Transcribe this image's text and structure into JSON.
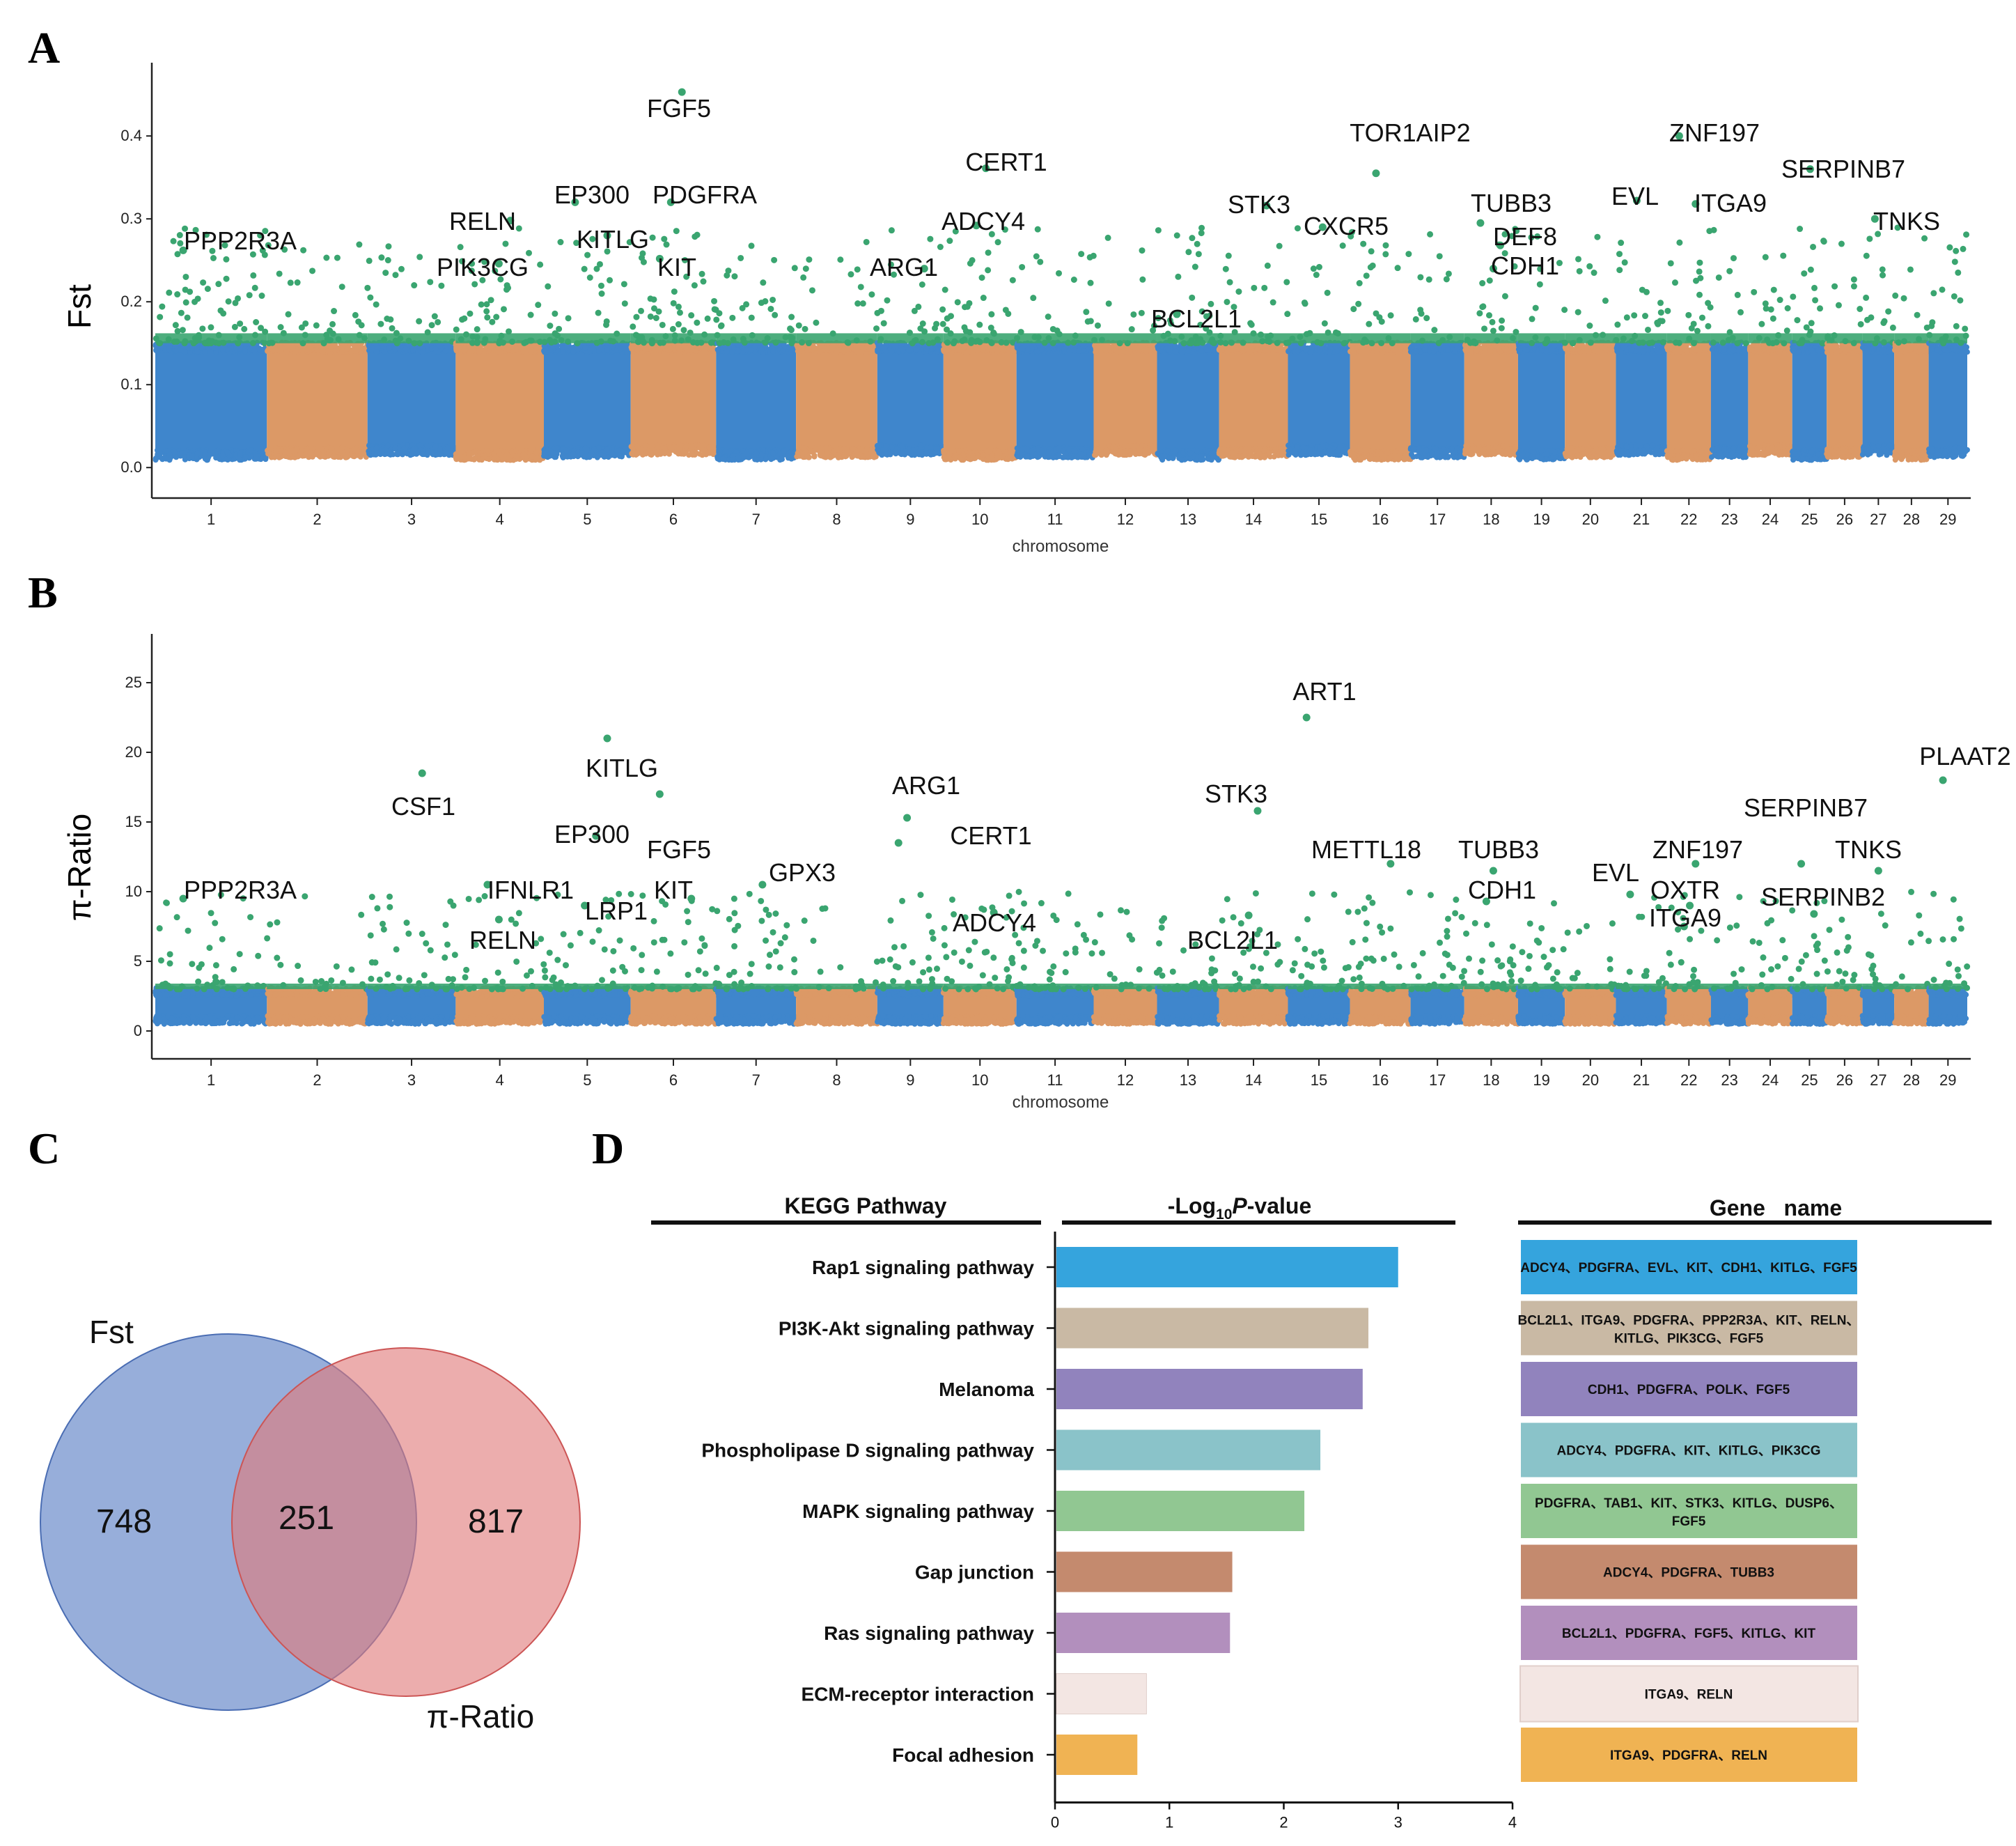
{
  "panel_labels": [
    "A",
    "B",
    "C",
    "D"
  ],
  "colors": {
    "blue": "#3f86cc",
    "orange": "#dc9966",
    "green": "#3aa570",
    "venn_blue": "#6f8fcc",
    "venn_red": "#e07a7a"
  },
  "chart_data": [
    {
      "id": "A",
      "type": "scatter",
      "title": "",
      "xlabel": "chromosome",
      "ylabel": "Fst",
      "ylim": [
        -0.02,
        0.48
      ],
      "yticks": [
        "0.0",
        "0.1",
        "0.2",
        "0.3",
        "0.4"
      ],
      "chromosomes": [
        "1",
        "2",
        "3",
        "4",
        "5",
        "6",
        "7",
        "8",
        "9",
        "10",
        "11",
        "12",
        "13",
        "14",
        "15",
        "16",
        "17",
        "18",
        "19",
        "20",
        "21",
        "22",
        "23",
        "24",
        "25",
        "26",
        "27",
        "28",
        "29"
      ],
      "background_max": 0.15,
      "threshold": 0.15,
      "annotations": [
        {
          "gene": "PPP2R3A",
          "chrom": 1,
          "value": 0.262
        },
        {
          "gene": "RELN",
          "chrom": 4,
          "value": 0.298
        },
        {
          "gene": "PIK3CG",
          "chrom": 4,
          "value": 0.246
        },
        {
          "gene": "EP300",
          "chrom": 5,
          "value": 0.32
        },
        {
          "gene": "KITLG",
          "chrom": 5,
          "value": 0.28
        },
        {
          "gene": "FGF5",
          "chrom": 6,
          "value": 0.453
        },
        {
          "gene": "PDGFRA",
          "chrom": 6,
          "value": 0.32
        },
        {
          "gene": "KIT",
          "chrom": 6,
          "value": 0.252
        },
        {
          "gene": "ARG1",
          "chrom": 9,
          "value": 0.24
        },
        {
          "gene": "CERT1",
          "chrom": 10,
          "value": 0.361
        },
        {
          "gene": "ADCY4",
          "chrom": 10,
          "value": 0.292
        },
        {
          "gene": "BCL2L1",
          "chrom": 13,
          "value": 0.185
        },
        {
          "gene": "STK3",
          "chrom": 14,
          "value": 0.316
        },
        {
          "gene": "CXCR5",
          "chrom": 15,
          "value": 0.29
        },
        {
          "gene": "TOR1AIP2",
          "chrom": 16,
          "value": 0.355
        },
        {
          "gene": "TUBB3",
          "chrom": 18,
          "value": 0.295
        },
        {
          "gene": "DEF8",
          "chrom": 18,
          "value": 0.268
        },
        {
          "gene": "CDH1",
          "chrom": 18,
          "value": 0.24
        },
        {
          "gene": "EVL",
          "chrom": 21,
          "value": 0.322
        },
        {
          "gene": "ZNF197",
          "chrom": 22,
          "value": 0.4
        },
        {
          "gene": "ITGA9",
          "chrom": 22,
          "value": 0.318
        },
        {
          "gene": "SERPINB7",
          "chrom": 25,
          "value": 0.36
        },
        {
          "gene": "TNKS",
          "chrom": 27,
          "value": 0.3
        }
      ]
    },
    {
      "id": "B",
      "type": "scatter",
      "title": "",
      "xlabel": "chromosome",
      "ylabel": "π-Ratio",
      "ylim": [
        -1,
        28
      ],
      "yticks": [
        "0",
        "5",
        "10",
        "15",
        "20",
        "25"
      ],
      "chromosomes": [
        "1",
        "2",
        "3",
        "4",
        "5",
        "6",
        "7",
        "8",
        "9",
        "10",
        "11",
        "12",
        "13",
        "14",
        "15",
        "16",
        "17",
        "18",
        "19",
        "20",
        "21",
        "22",
        "23",
        "24",
        "25",
        "26",
        "27",
        "28",
        "29"
      ],
      "background_max": 3,
      "threshold": 3,
      "annotations": [
        {
          "gene": "PPP2R3A",
          "chrom": 1,
          "value": 9.5
        },
        {
          "gene": "CSF1",
          "chrom": 3,
          "value": 18.5
        },
        {
          "gene": "RELN",
          "chrom": 4,
          "value": 8.0
        },
        {
          "gene": "IFNLR1",
          "chrom": 4,
          "value": 10.5
        },
        {
          "gene": "KITLG",
          "chrom": 5,
          "value": 21.0
        },
        {
          "gene": "EP300",
          "chrom": 5,
          "value": 14.0
        },
        {
          "gene": "LRP1",
          "chrom": 5,
          "value": 9.0
        },
        {
          "gene": "FGF5",
          "chrom": 6,
          "value": 17.0
        },
        {
          "gene": "KIT",
          "chrom": 6,
          "value": 9.5
        },
        {
          "gene": "GPX3",
          "chrom": 7,
          "value": 10.5
        },
        {
          "gene": "ARG1",
          "chrom": 9,
          "value": 15.3
        },
        {
          "gene": "CERT1",
          "chrom": 9,
          "value": 13.5
        },
        {
          "gene": "ADCY4",
          "chrom": 10,
          "value": 8.5
        },
        {
          "gene": "STK3",
          "chrom": 14,
          "value": 15.8
        },
        {
          "gene": "BCL2L1",
          "chrom": 14,
          "value": 8.3
        },
        {
          "gene": "ART1",
          "chrom": 15,
          "value": 22.5
        },
        {
          "gene": "METTL18",
          "chrom": 16,
          "value": 12.0
        },
        {
          "gene": "TUBB3",
          "chrom": 18,
          "value": 11.5
        },
        {
          "gene": "CDH1",
          "chrom": 18,
          "value": 9.3
        },
        {
          "gene": "EVL",
          "chrom": 21,
          "value": 9.8
        },
        {
          "gene": "ZNF197",
          "chrom": 22,
          "value": 12.0
        },
        {
          "gene": "OXTR",
          "chrom": 22,
          "value": 9.0
        },
        {
          "gene": "ITGA9",
          "chrom": 22,
          "value": 7.5
        },
        {
          "gene": "SERPINB7",
          "chrom": 25,
          "value": 12.0
        },
        {
          "gene": "SERPINB2",
          "chrom": 25,
          "value": 8.4
        },
        {
          "gene": "TNKS",
          "chrom": 27,
          "value": 11.5
        },
        {
          "gene": "PLAAT2",
          "chrom": 29,
          "value": 18.0
        }
      ]
    },
    {
      "id": "C",
      "type": "venn",
      "sets": [
        "Fst",
        "π-Ratio"
      ],
      "only_a": "748",
      "both": "251",
      "only_b": "817"
    },
    {
      "id": "D",
      "type": "bar",
      "orientation": "horizontal",
      "col_headers": [
        "KEGG Pathway",
        "-Log",
        "10",
        "P",
        "-value",
        "Gene   name"
      ],
      "xlim": [
        0,
        4
      ],
      "xticks": [
        "0",
        "1",
        "2",
        "3",
        "4"
      ],
      "categories": [
        "Rap1 signaling pathway",
        "PI3K-Akt signaling pathway",
        "Melanoma",
        "Phospholipase D signaling pathway",
        "MAPK signaling pathway",
        "Gap junction",
        "Ras signaling pathway",
        "ECM-receptor interaction",
        "Focal adhesion"
      ],
      "values": [
        3.0,
        2.74,
        2.69,
        2.32,
        2.18,
        1.55,
        1.53,
        0.8,
        0.72
      ],
      "bar_colors": [
        "#35a4dd",
        "#c9b9a4",
        "#9183bd",
        "#8ac3c9",
        "#91c792",
        "#c48a6e",
        "#b28fbd",
        "#f3e6e3",
        "#f0b353"
      ],
      "genes": [
        [
          "ADCY4、PDGFRA、EVL、KIT、CDH1、KITLG、FGF5"
        ],
        [
          "BCL2L1、ITGA9、PDGFRA、PPP2R3A、KIT、RELN、",
          "KITLG、PIK3CG、FGF5"
        ],
        [
          "CDH1、PDGFRA、POLK、FGF5"
        ],
        [
          "ADCY4、PDGFRA、KIT、KITLG、PIK3CG"
        ],
        [
          "PDGFRA、TAB1、KIT、STK3、KITLG、DUSP6、",
          "FGF5"
        ],
        [
          "ADCY4、PDGFRA、TUBB3"
        ],
        [
          "BCL2L1、PDGFRA、FGF5、KITLG、KIT"
        ],
        [
          "ITGA9、RELN"
        ],
        [
          "ITGA9、PDGFRA、RELN"
        ]
      ]
    }
  ]
}
